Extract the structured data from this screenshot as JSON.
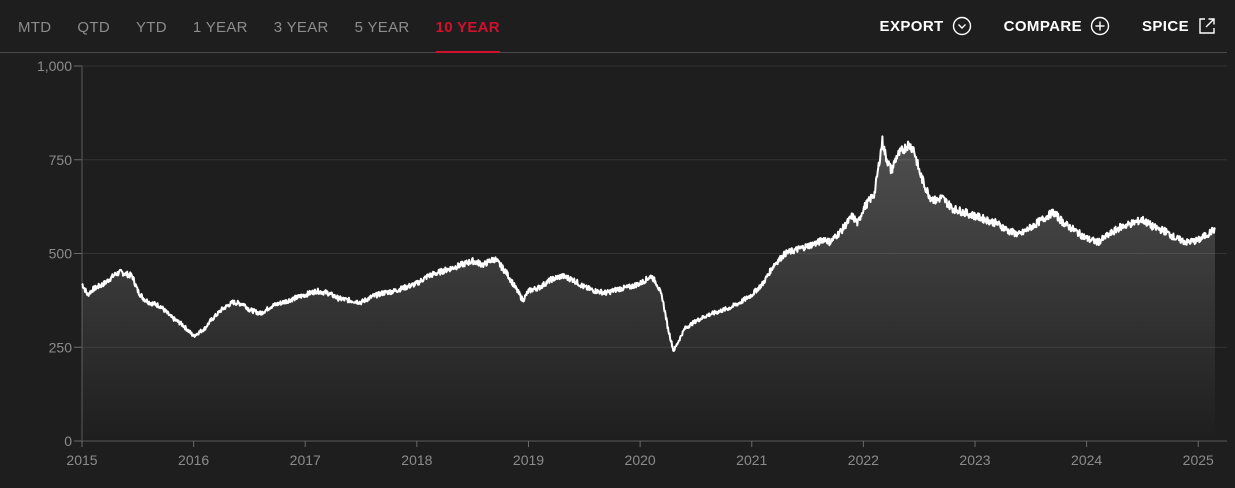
{
  "tabs": [
    {
      "label": "MTD",
      "active": false
    },
    {
      "label": "QTD",
      "active": false
    },
    {
      "label": "YTD",
      "active": false
    },
    {
      "label": "1 YEAR",
      "active": false
    },
    {
      "label": "3 YEAR",
      "active": false
    },
    {
      "label": "5 YEAR",
      "active": false
    },
    {
      "label": "10 YEAR",
      "active": true
    }
  ],
  "actions": {
    "export_label": "EXPORT",
    "compare_label": "COMPARE",
    "spice_label": "SPICE"
  },
  "colors": {
    "accent": "#d0102d",
    "line": "#ffffff",
    "background": "#1e1e1e",
    "muted_text": "#8c8c8c"
  },
  "chart_data": {
    "type": "area",
    "ylim": [
      0,
      1000
    ],
    "yticks": [
      0,
      250,
      500,
      750,
      1000
    ],
    "ytick_labels": [
      "0",
      "250",
      "500",
      "750",
      "1,000"
    ],
    "xlim": [
      2015.0,
      2025.15
    ],
    "xticks": [
      2015,
      2016,
      2017,
      2018,
      2019,
      2020,
      2021,
      2022,
      2023,
      2024,
      2025
    ],
    "xtick_labels": [
      "2015",
      "2016",
      "2017",
      "2018",
      "2019",
      "2020",
      "2021",
      "2022",
      "2023",
      "2024",
      "2025"
    ],
    "grid": true,
    "series": [
      {
        "x": [
          2015.0,
          2015.05,
          2015.1,
          2015.2,
          2015.3,
          2015.35,
          2015.45,
          2015.5,
          2015.55,
          2015.6,
          2015.7,
          2015.8,
          2015.9,
          2016.0,
          2016.05,
          2016.1,
          2016.15,
          2016.25,
          2016.35,
          2016.45,
          2016.5,
          2016.6,
          2016.7,
          2016.8,
          2016.9,
          2017.0,
          2017.1,
          2017.2,
          2017.3,
          2017.4,
          2017.5,
          2017.6,
          2017.7,
          2017.8,
          2017.9,
          2018.0,
          2018.1,
          2018.2,
          2018.3,
          2018.4,
          2018.5,
          2018.6,
          2018.65,
          2018.7,
          2018.8,
          2018.9,
          2018.95,
          2019.0,
          2019.1,
          2019.2,
          2019.3,
          2019.4,
          2019.5,
          2019.6,
          2019.7,
          2019.8,
          2019.9,
          2020.0,
          2020.1,
          2020.15,
          2020.2,
          2020.25,
          2020.3,
          2020.35,
          2020.4,
          2020.5,
          2020.6,
          2020.7,
          2020.8,
          2020.9,
          2021.0,
          2021.1,
          2021.2,
          2021.3,
          2021.4,
          2021.5,
          2021.6,
          2021.65,
          2021.7,
          2021.8,
          2021.9,
          2021.95,
          2022.0,
          2022.1,
          2022.17,
          2022.2,
          2022.25,
          2022.3,
          2022.4,
          2022.45,
          2022.5,
          2022.55,
          2022.6,
          2022.65,
          2022.7,
          2022.8,
          2022.9,
          2023.0,
          2023.1,
          2023.2,
          2023.3,
          2023.4,
          2023.5,
          2023.6,
          2023.7,
          2023.8,
          2023.9,
          2024.0,
          2024.1,
          2024.2,
          2024.3,
          2024.4,
          2024.5,
          2024.6,
          2024.7,
          2024.8,
          2024.9,
          2025.0,
          2025.05,
          2025.1,
          2025.15
        ],
        "values": [
          420,
          390,
          405,
          420,
          445,
          450,
          440,
          400,
          380,
          370,
          360,
          330,
          310,
          280,
          290,
          300,
          320,
          350,
          370,
          365,
          350,
          340,
          360,
          370,
          380,
          390,
          400,
          395,
          380,
          375,
          370,
          385,
          395,
          400,
          410,
          420,
          440,
          450,
          460,
          470,
          480,
          470,
          480,
          485,
          450,
          400,
          375,
          400,
          410,
          430,
          440,
          430,
          410,
          400,
          395,
          405,
          410,
          420,
          440,
          420,
          380,
          300,
          240,
          270,
          300,
          320,
          335,
          345,
          355,
          370,
          390,
          420,
          470,
          500,
          510,
          520,
          530,
          540,
          530,
          560,
          600,
          580,
          620,
          660,
          800,
          760,
          720,
          760,
          790,
          780,
          720,
          680,
          650,
          640,
          650,
          620,
          610,
          600,
          590,
          580,
          560,
          550,
          570,
          590,
          610,
          580,
          560,
          540,
          530,
          550,
          570,
          580,
          590,
          570,
          560,
          540,
          530,
          535,
          545,
          555,
          565
        ]
      }
    ]
  }
}
